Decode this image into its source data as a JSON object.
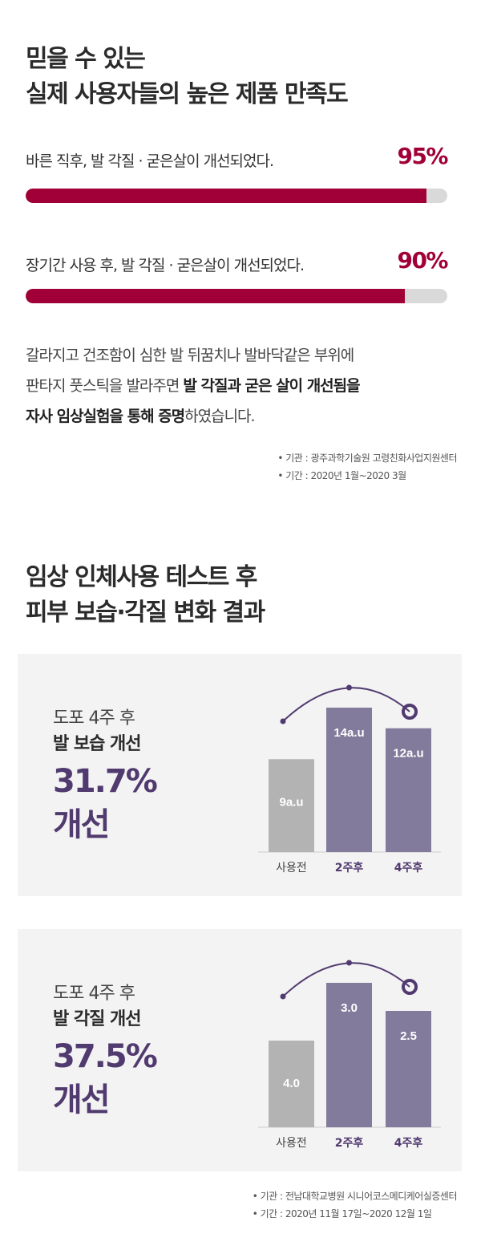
{
  "section1": {
    "title_line1": "믿을 수 있는",
    "title_line2": "실제 사용자들의 높은 제품 만족도",
    "stats": [
      {
        "label": "바른 직후, 발 각질 · 굳은살이 개선되었다.",
        "percent_text": "95%",
        "value": 95
      },
      {
        "label": "장기간 사용 후, 발 각질 · 굳은살이 개선되었다.",
        "percent_text": "90%",
        "value": 90
      }
    ],
    "desc_line1": "갈라지고 건조함이 심한 발 뒤꿈치나 발바닥같은 부위에",
    "desc_line2_pre": "판타지 풋스틱을 발라주면 ",
    "desc_line2_bold": "발 각질과 굳은 살이 개선됨을",
    "desc_line3_bold": "자사 임상실험을 통해 증명",
    "desc_line3_post": "하였습니다.",
    "note1": "• 기관 : 광주과학기술원 고령친화사업지원센터",
    "note2": "• 기간 : 2020년 1월~2020 3월"
  },
  "section2": {
    "title_line1": "임상 인체사용 테스트 후",
    "title_line2": "피부 보습·각질 변화 결과",
    "note1": "• 기관 : 전남대학교병원 시니어코스메디케어실증센터",
    "note2": "• 기간 : 2020년 11월 17일~2020 12월 1일"
  },
  "panels": [
    {
      "sub": "도포 4주 후",
      "heading": "발 보습 개선",
      "big_value": "31.7%",
      "big_word": "개선"
    },
    {
      "sub": "도포 4주 후",
      "heading": "발 각질 개선",
      "big_value": "37.5%",
      "big_word": "개선"
    }
  ],
  "chart_data": [
    {
      "type": "bar",
      "categories": [
        "사용전",
        "2주후",
        "4주후"
      ],
      "values": [
        9,
        14,
        12
      ],
      "value_labels": [
        "9a.u",
        "14a.u",
        "12a.u"
      ],
      "colors": [
        "#b3b3b3",
        "#827b9b",
        "#827b9b"
      ],
      "ylim": [
        0,
        14
      ]
    },
    {
      "type": "bar",
      "categories": [
        "사용전",
        "2주후",
        "4주후"
      ],
      "values": [
        4.0,
        3.0,
        2.5
      ],
      "value_labels": [
        "4.0",
        "3.0",
        "2.5"
      ],
      "colors": [
        "#b3b3b3",
        "#827b9b",
        "#827b9b"
      ],
      "ylim": [
        0,
        4.0
      ],
      "note": "bar heights visually inverted (lower value = improvement)"
    }
  ],
  "colors": {
    "accent": "#a00037",
    "purple": "#503a6f",
    "bar_gray": "#b3b3b3",
    "bar_purple": "#827b9b",
    "track": "#d9d9d9",
    "panel_bg": "#f3f3f3"
  }
}
